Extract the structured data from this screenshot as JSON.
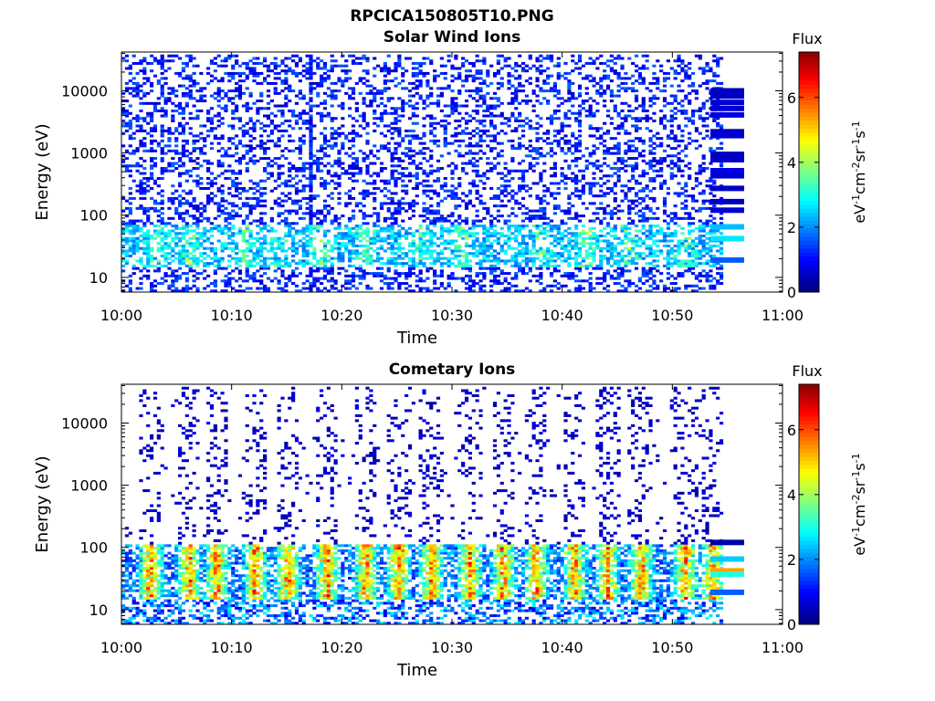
{
  "figure": {
    "title": "RPCICA150805T10.PNG"
  },
  "chart_data": [
    {
      "type": "heatmap",
      "title": "Solar Wind Ions",
      "xlabel": "Time",
      "ylabel": "Energy (eV)",
      "x_ticks": [
        "10:00",
        "10:10",
        "10:20",
        "10:30",
        "10:40",
        "10:50",
        "11:00"
      ],
      "y_ticks": [
        "10",
        "100",
        "1000",
        "10000"
      ],
      "y_scale": "log",
      "ylim": [
        5.8,
        42000
      ],
      "xlim_minutes": [
        0,
        60
      ],
      "colorbar": {
        "label": "Flux",
        "units": "eV-1cm-2sr-1s-1",
        "ticks": [
          "0",
          "2",
          "4",
          "6"
        ],
        "range": [
          0,
          7.4
        ],
        "colormap": "jet"
      },
      "patterns": {
        "background_flux": 1.2,
        "low_energy_band_eV": [
          15,
          70
        ],
        "low_energy_peak_flux": 4.8,
        "peak_times_minutes": [
          3,
          6,
          11,
          14,
          18,
          22,
          27,
          31,
          38,
          42,
          46,
          51
        ],
        "vertical_streak_minute": 17
      },
      "calibration_column": [
        {
          "energy": 10000,
          "flux": 0.5
        },
        {
          "energy": 8200,
          "flux": 0.5
        },
        {
          "energy": 6500,
          "flux": 0.6
        },
        {
          "energy": 5200,
          "flux": 0.6
        },
        {
          "energy": 4100,
          "flux": 0.7
        },
        {
          "energy": 2200,
          "flux": 0.5
        },
        {
          "energy": 1900,
          "flux": 0.6
        },
        {
          "energy": 950,
          "flux": 0.5
        },
        {
          "energy": 780,
          "flux": 0.5
        },
        {
          "energy": 520,
          "flux": 0.7
        },
        {
          "energy": 430,
          "flux": 0.6
        },
        {
          "energy": 270,
          "flux": 0.5
        },
        {
          "energy": 165,
          "flux": 0.5
        },
        {
          "energy": 120,
          "flux": 0.6
        },
        {
          "energy": 65,
          "flux": 2.3
        },
        {
          "energy": 42,
          "flux": 2.6
        },
        {
          "energy": 19,
          "flux": 1.6
        }
      ]
    },
    {
      "type": "heatmap",
      "title": "Cometary Ions",
      "xlabel": "Time",
      "ylabel": "Energy (eV)",
      "x_ticks": [
        "10:00",
        "10:10",
        "10:20",
        "10:30",
        "10:40",
        "10:50",
        "11:00"
      ],
      "y_ticks": [
        "10",
        "100",
        "1000",
        "10000"
      ],
      "y_scale": "log",
      "ylim": [
        5.8,
        42000
      ],
      "xlim_minutes": [
        0,
        60
      ],
      "colorbar": {
        "label": "Flux",
        "units": "eV-1cm-2sr-1s-1",
        "ticks": [
          "0",
          "2",
          "4",
          "6"
        ],
        "range": [
          0,
          7.4
        ],
        "colormap": "jet"
      },
      "patterns": {
        "background_flux": 0.5,
        "low_energy_band_eV": [
          15,
          110
        ],
        "low_energy_peak_flux": 6.8,
        "peak_times_minutes": [
          2.5,
          6,
          8.5,
          12,
          15,
          18.5,
          22,
          25,
          28,
          31.5,
          34.5,
          37.5,
          41,
          44,
          47,
          51,
          53.5
        ]
      },
      "calibration_column": [
        {
          "energy": 120,
          "flux": 0.3
        },
        {
          "energy": 65,
          "flux": 2.4
        },
        {
          "energy": 42,
          "flux": 5.3
        },
        {
          "energy": 37,
          "flux": 3.0
        },
        {
          "energy": 19,
          "flux": 1.6
        }
      ]
    }
  ]
}
